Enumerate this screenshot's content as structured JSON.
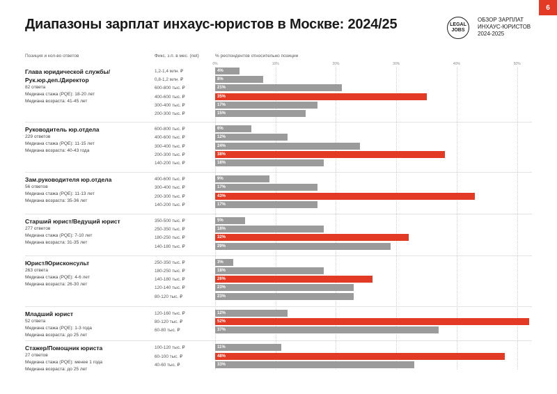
{
  "header": {
    "title": "Диапазоны зарплат инхаус-юристов в Москве: 2024/25",
    "logo_lines": [
      "LEGAL",
      "JOBS"
    ],
    "brand_lines": [
      "ОБЗОР ЗАРПЛАТ",
      "ИНХАУС-ЮРИСТОВ",
      "2024-2025"
    ],
    "page_number": "6"
  },
  "columns": {
    "position": "Позиция и кол-во ответов",
    "salary": "Фикс. з.п. в мес. (net)",
    "percent": "% респондентов относительно позиции"
  },
  "chart_data": {
    "type": "bar",
    "orientation": "horizontal",
    "title": "Диапазоны зарплат инхаус-юристов в Москве: 2024/25",
    "xlabel": "% респондентов относительно позиции",
    "ylabel": "Фикс. з.п. в мес. (net)",
    "xlim": [
      0,
      52
    ],
    "x_ticks": [
      "0%",
      "10%",
      "20%",
      "30%",
      "40%",
      "50%"
    ],
    "grid": true,
    "highlight_color": "#e23a24",
    "base_color": "#9b9b9b",
    "groups": [
      {
        "name": "Глава юридической службы/ Рук.юр.деп./Директор",
        "name_lines": [
          "Глава юридической службы/",
          "Рук.юр.деп./Директор"
        ],
        "info": [
          "82 ответа",
          "Медиана стажа (PQE): 18-20 лет",
          "Медиана возраста: 41-45 лет"
        ],
        "rows": [
          {
            "label": "1,2-1,4 млн. ₽",
            "value": 4,
            "pct": "4%",
            "highlight": false
          },
          {
            "label": "0,8-1,2 млн. ₽",
            "value": 8,
            "pct": "8%",
            "highlight": false
          },
          {
            "label": "600-800 тыс. ₽",
            "value": 21,
            "pct": "21%",
            "highlight": false
          },
          {
            "label": "400-600 тыс. ₽",
            "value": 35,
            "pct": "35%",
            "highlight": true
          },
          {
            "label": "300-400 тыс. ₽",
            "value": 17,
            "pct": "17%",
            "highlight": false
          },
          {
            "label": "200-300 тыс. ₽",
            "value": 15,
            "pct": "15%",
            "highlight": false
          }
        ]
      },
      {
        "name": "Руководитель юр.отдела",
        "name_lines": [
          "Руководитель юр.отдела"
        ],
        "info": [
          "229 ответов",
          "Медиана стажа (PQE): 11-15 лет",
          "Медиана возраста: 40-43 года"
        ],
        "rows": [
          {
            "label": "600-800 тыс. ₽",
            "value": 6,
            "pct": "6%",
            "highlight": false
          },
          {
            "label": "400-600 тыс. ₽",
            "value": 12,
            "pct": "12%",
            "highlight": false
          },
          {
            "label": "300-400 тыс. ₽",
            "value": 24,
            "pct": "24%",
            "highlight": false
          },
          {
            "label": "200-300 тыс. ₽",
            "value": 38,
            "pct": "38%",
            "highlight": true
          },
          {
            "label": "140-200 тыс. ₽",
            "value": 18,
            "pct": "18%",
            "highlight": false
          }
        ]
      },
      {
        "name": "Зам.руководителя юр.отдела",
        "name_lines": [
          "Зам.руководителя юр.отдела"
        ],
        "info": [
          "56 ответов",
          "Медиана стажа (PQE): 11-13 лет",
          "Медиана возраста: 35-36 лет"
        ],
        "rows": [
          {
            "label": "400-600 тыс. ₽",
            "value": 9,
            "pct": "9%",
            "highlight": false
          },
          {
            "label": "300-400 тыс. ₽",
            "value": 17,
            "pct": "17%",
            "highlight": false
          },
          {
            "label": "200-300 тыс. ₽",
            "value": 43,
            "pct": "43%",
            "highlight": true
          },
          {
            "label": "140-200 тыс. ₽",
            "value": 17,
            "pct": "17%",
            "highlight": false
          }
        ]
      },
      {
        "name": "Старший юрист/Ведущий юрист",
        "name_lines": [
          "Старший юрист/Ведущий юрист"
        ],
        "info": [
          "277 ответов",
          "Медиана стажа (PQE): 7-10 лет",
          "Медиана возраста: 31-35 лет"
        ],
        "rows": [
          {
            "label": "350-500 тыс. ₽",
            "value": 5,
            "pct": "5%",
            "highlight": false
          },
          {
            "label": "250-350 тыс. ₽",
            "value": 18,
            "pct": "18%",
            "highlight": false
          },
          {
            "label": "180-250 тыс. ₽",
            "value": 32,
            "pct": "32%",
            "highlight": true
          },
          {
            "label": "140-180 тыс. ₽",
            "value": 29,
            "pct": "29%",
            "highlight": false
          }
        ]
      },
      {
        "name": "Юрист/Юрисконсульт",
        "name_lines": [
          "Юрист/Юрисконсульт"
        ],
        "info": [
          "263 ответа",
          "Медиана стажа (PQE): 4-6 лет",
          "Медиана возраста: 26-30 лет"
        ],
        "rows": [
          {
            "label": "250-350 тыс. ₽",
            "value": 3,
            "pct": "3%",
            "highlight": false
          },
          {
            "label": "180-250 тыс. ₽",
            "value": 18,
            "pct": "18%",
            "highlight": false
          },
          {
            "label": "140-180 тыс. ₽",
            "value": 26,
            "pct": "26%",
            "highlight": true
          },
          {
            "label": "120-140 тыс. ₽",
            "value": 23,
            "pct": "23%",
            "highlight": false
          },
          {
            "label": "80-120 тыс. ₽",
            "value": 23,
            "pct": "23%",
            "highlight": false
          }
        ]
      },
      {
        "name": "Младший юрист",
        "name_lines": [
          "Младший юрист"
        ],
        "info": [
          "52 ответа",
          "Медиана стажа (PQE): 1-3 года",
          "Медиана возраста: до 25 лет"
        ],
        "rows": [
          {
            "label": "120-160 тыс. ₽",
            "value": 12,
            "pct": "12%",
            "highlight": false
          },
          {
            "label": "80-120 тыс. ₽",
            "value": 52,
            "pct": "52%",
            "highlight": true
          },
          {
            "label": "60-80 тыс. ₽",
            "value": 37,
            "pct": "37%",
            "highlight": false
          }
        ]
      },
      {
        "name": "Стажер/Помощник юриста",
        "name_lines": [
          "Стажер/Помощник юриста"
        ],
        "info": [
          "27 ответов",
          "Медиана стажа (PQE): менее 1 года",
          "Медиана возраста: до 25 лет"
        ],
        "rows": [
          {
            "label": "100-120 тыс. ₽",
            "value": 11,
            "pct": "11%",
            "highlight": false
          },
          {
            "label": "60-100 тыс. ₽",
            "value": 48,
            "pct": "48%",
            "highlight": true
          },
          {
            "label": "40-60 тыс. ₽",
            "value": 33,
            "pct": "33%",
            "highlight": false
          }
        ]
      }
    ]
  }
}
